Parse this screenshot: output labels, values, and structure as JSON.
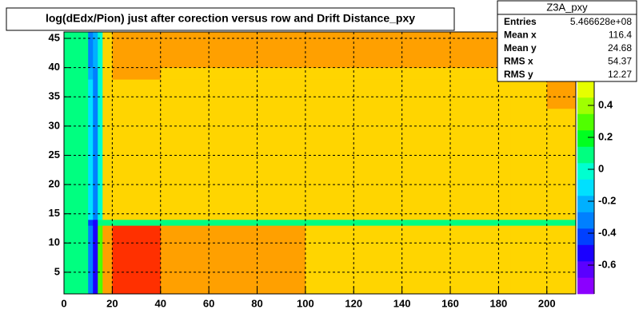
{
  "chart_data": {
    "type": "heatmap",
    "title": "log(dEdx/Pion) just after corection versus row and Drift Distance_pxy",
    "x_edges": [
      0,
      10,
      12,
      14,
      16,
      20,
      40,
      60,
      80,
      100,
      185,
      200,
      212
    ],
    "y_edges": [
      1.3,
      13,
      14,
      33,
      38,
      40,
      46.1
    ],
    "z": [
      [
        0.1,
        -0.3,
        -0.5,
        0.3,
        0.75,
        0.8,
        0.7,
        0.7,
        0.7,
        0.6,
        0.6,
        0.6
      ],
      [
        0.1,
        -0.4,
        -0.5,
        0.1,
        0.1,
        0.1,
        0.1,
        0.1,
        0.1,
        0.1,
        0.1,
        0.1
      ],
      [
        0.1,
        -0.1,
        -0.3,
        0.0,
        0.6,
        0.6,
        0.6,
        0.6,
        0.6,
        0.6,
        0.6,
        0.6
      ],
      [
        0.1,
        -0.1,
        -0.3,
        0.0,
        0.6,
        0.6,
        0.6,
        0.6,
        0.6,
        0.6,
        0.6,
        0.7
      ],
      [
        0.1,
        -0.2,
        -0.3,
        0.0,
        0.6,
        0.7,
        0.6,
        0.6,
        0.6,
        0.6,
        0.6,
        0.6
      ],
      [
        0.1,
        -0.3,
        -0.2,
        0.0,
        0.6,
        0.7,
        0.7,
        0.7,
        0.7,
        0.7,
        0.7,
        0.7
      ]
    ],
    "palette": [
      "#8b00ff",
      "#5a00ff",
      "#1a00ff",
      "#0040ff",
      "#0080ff",
      "#00b0ff",
      "#00e0ff",
      "#00ffd0",
      "#00ff80",
      "#00ff20",
      "#50ff00",
      "#a0ff00",
      "#e6ff00",
      "#ffd500",
      "#ffa000",
      "#ff3000"
    ],
    "xlim": [
      0,
      212
    ],
    "ylim": [
      1.3,
      46.1
    ],
    "zlim": [
      -0.78,
      0.86
    ],
    "xticks": [
      0,
      20,
      40,
      60,
      80,
      100,
      120,
      140,
      160,
      180,
      200
    ],
    "yticks": [
      5,
      10,
      15,
      20,
      25,
      30,
      35,
      40,
      45
    ],
    "zticks": [
      -0.6,
      -0.4,
      -0.2,
      0,
      0.2,
      0.4
    ],
    "grid": true,
    "stats": {
      "name": "Z3A_pxy",
      "rows": [
        [
          "Entries",
          "5.466628e+08"
        ],
        [
          "Mean x",
          "116.4"
        ],
        [
          "Mean y",
          "24.68"
        ],
        [
          "RMS x",
          "54.37"
        ],
        [
          "RMS y",
          "12.27"
        ]
      ]
    }
  }
}
